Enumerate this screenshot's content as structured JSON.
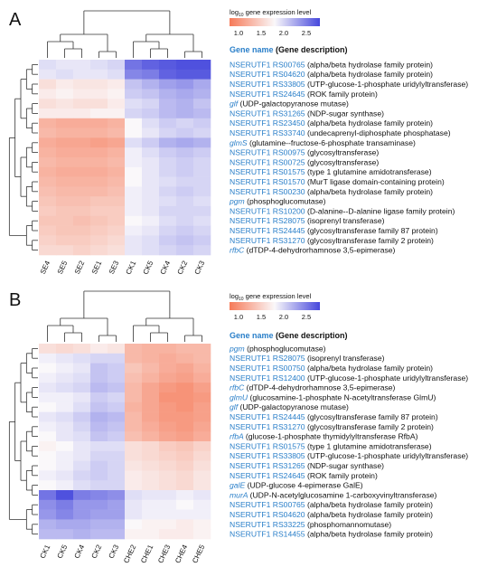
{
  "chart_data": [
    {
      "type": "heatmap",
      "panel_label": "A",
      "legend": {
        "title_prefix": "log",
        "title_sub": "10",
        "title_rest": " gene expression level",
        "ticks": [
          "1.0",
          "1.5",
          "2.0",
          "2.5"
        ],
        "range": [
          0.8,
          2.8
        ]
      },
      "header": "Gene name",
      "header_desc": "(Gene description)",
      "columns": [
        "SE4",
        "SE5",
        "SE2",
        "SE1",
        "SE3",
        "CK1",
        "CK5",
        "CK4",
        "CK2",
        "CK3"
      ],
      "rows": [
        {
          "id": "NSERUTF1 RS00765",
          "desc": "(alpha/beta hydrolase family protein)",
          "italic": false
        },
        {
          "id": "NSERUTF1 RS04620",
          "desc": "(alpha/beta hydrolase family protein)",
          "italic": false
        },
        {
          "id": "NSERUTF1 RS33805",
          "desc": "(UTP-glucose-1-phosphate uridylyltransferase)",
          "italic": false
        },
        {
          "id": "NSERUTF1 RS24645",
          "desc": "(ROK family protein)",
          "italic": false
        },
        {
          "id": "glf",
          "desc": "(UDP-galactopyranose mutase)",
          "italic": true
        },
        {
          "id": "NSERUTF1 RS31265",
          "desc": "(NDP-sugar synthase)",
          "italic": false
        },
        {
          "id": "NSERUTF1 RS23450",
          "desc": "(alpha/beta hydrolase family protein)",
          "italic": false
        },
        {
          "id": "NSERUTF1 RS33740",
          "desc": "(undecaprenyl-diphosphate phosphatase)",
          "italic": false
        },
        {
          "id": "glmS",
          "desc": "(glutamine--fructose-6-phosphate transaminase)",
          "italic": true
        },
        {
          "id": "NSERUTF1 RS00975",
          "desc": "(glycosyltransferase)",
          "italic": false
        },
        {
          "id": "NSERUTF1 RS00725",
          "desc": "(glycosyltransferase)",
          "italic": false
        },
        {
          "id": "NSERUTF1 RS01575",
          "desc": "(type 1 glutamine amidotransferase)",
          "italic": false
        },
        {
          "id": "NSERUTF1 RS01570",
          "desc": "(MurT ligase domain-containing protein)",
          "italic": false
        },
        {
          "id": "NSERUTF1 RS00230",
          "desc": "(alpha/beta hydrolase family protein)",
          "italic": false
        },
        {
          "id": "pgm",
          "desc": "(phosphoglucomutase)",
          "italic": true
        },
        {
          "id": "NSERUTF1 RS10200",
          "desc": "(D-alanine--D-alanine ligase family protein)",
          "italic": false
        },
        {
          "id": "NSERUTF1 RS28075",
          "desc": "(isoprenyl transferase)",
          "italic": false
        },
        {
          "id": "NSERUTF1 RS24445",
          "desc": "(glycosyltransferase family 87 protein)",
          "italic": false
        },
        {
          "id": "NSERUTF1 RS31270",
          "desc": "(glycosyltransferase family 2 protein)",
          "italic": false
        },
        {
          "id": "rfbC",
          "desc": "(dTDP-4-dehydrorhamnose 3,5-epimerase)",
          "italic": true
        }
      ],
      "values": [
        [
          1.95,
          1.9,
          1.9,
          1.95,
          2.0,
          2.55,
          2.65,
          2.7,
          2.75,
          2.75
        ],
        [
          1.9,
          1.95,
          1.9,
          1.9,
          1.95,
          2.45,
          2.5,
          2.65,
          2.7,
          2.7
        ],
        [
          1.6,
          1.7,
          1.65,
          1.65,
          1.7,
          2.1,
          2.2,
          2.3,
          2.35,
          2.25
        ],
        [
          1.7,
          1.75,
          1.7,
          1.7,
          1.75,
          2.05,
          2.1,
          2.2,
          2.25,
          2.2
        ],
        [
          1.6,
          1.65,
          1.6,
          1.6,
          1.7,
          1.95,
          2.0,
          2.15,
          2.2,
          2.1
        ],
        [
          1.7,
          1.7,
          1.7,
          1.75,
          1.75,
          2.0,
          2.05,
          2.15,
          2.2,
          2.15
        ],
        [
          1.25,
          1.2,
          1.2,
          1.2,
          1.25,
          1.8,
          1.95,
          2.05,
          2.0,
          2.05
        ],
        [
          1.3,
          1.25,
          1.25,
          1.25,
          1.3,
          1.8,
          1.9,
          2.0,
          2.05,
          2.0
        ],
        [
          1.2,
          1.15,
          1.15,
          1.1,
          1.15,
          1.95,
          2.05,
          2.2,
          2.25,
          2.2
        ],
        [
          1.25,
          1.2,
          1.2,
          1.2,
          1.25,
          1.85,
          1.95,
          2.05,
          2.1,
          2.05
        ],
        [
          1.3,
          1.25,
          1.25,
          1.25,
          1.3,
          1.85,
          1.9,
          2.0,
          2.05,
          2.0
        ],
        [
          1.25,
          1.2,
          1.2,
          1.2,
          1.25,
          1.8,
          1.9,
          2.0,
          2.05,
          2.0
        ],
        [
          1.3,
          1.25,
          1.25,
          1.25,
          1.3,
          1.8,
          1.9,
          1.95,
          2.0,
          2.0
        ],
        [
          1.35,
          1.3,
          1.3,
          1.3,
          1.35,
          1.85,
          1.9,
          2.0,
          2.05,
          2.0
        ],
        [
          1.4,
          1.35,
          1.35,
          1.4,
          1.4,
          1.85,
          1.9,
          1.95,
          2.0,
          1.95
        ],
        [
          1.45,
          1.4,
          1.4,
          1.45,
          1.45,
          1.85,
          1.9,
          2.0,
          2.0,
          2.0
        ],
        [
          1.4,
          1.4,
          1.35,
          1.4,
          1.45,
          1.8,
          1.85,
          1.95,
          2.0,
          1.95
        ],
        [
          1.45,
          1.4,
          1.4,
          1.45,
          1.5,
          1.85,
          1.9,
          2.0,
          2.05,
          2.0
        ],
        [
          1.5,
          1.45,
          1.45,
          1.5,
          1.55,
          1.9,
          1.95,
          2.05,
          2.1,
          2.05
        ],
        [
          1.55,
          1.55,
          1.5,
          1.55,
          1.6,
          1.9,
          1.95,
          2.0,
          2.05,
          2.0
        ]
      ]
    },
    {
      "type": "heatmap",
      "panel_label": "B",
      "legend": {
        "title_prefix": "log",
        "title_sub": "10",
        "title_rest": " gene expression level",
        "ticks": [
          "1.0",
          "1.5",
          "2.0",
          "2.5"
        ],
        "range": [
          0.8,
          2.8
        ]
      },
      "header": "Gene name",
      "header_desc": "(Gene description)",
      "columns": [
        "CK1",
        "CK5",
        "CK4",
        "CK2",
        "CK3",
        "CHE2",
        "CHE1",
        "CHE3",
        "CHE4",
        "CHE5"
      ],
      "rows": [
        {
          "id": "pgm",
          "desc": "(phosphoglucomutase)",
          "italic": true
        },
        {
          "id": "NSERUTF1 RS28075",
          "desc": "(isoprenyl transferase)",
          "italic": false
        },
        {
          "id": "NSERUTF1 RS00750",
          "desc": "(alpha/beta hydrolase family protein)",
          "italic": false
        },
        {
          "id": "NSERUTF1 RS12400",
          "desc": "(UTP-glucose-1-phosphate uridylyltransferase)",
          "italic": false
        },
        {
          "id": "rfbC",
          "desc": "(dTDP-4-dehydrorhamnose 3,5-epimerase)",
          "italic": true
        },
        {
          "id": "glmU",
          "desc": "(glucosamine-1-phosphate N-acetyltransferase GlmU)",
          "italic": true
        },
        {
          "id": "glf",
          "desc": "(UDP-galactopyranose mutase)",
          "italic": true
        },
        {
          "id": "NSERUTF1 RS24445",
          "desc": "(glycosyltransferase family 87 protein)",
          "italic": false
        },
        {
          "id": "NSERUTF1 RS31270",
          "desc": "(glycosyltransferase family 2 protein)",
          "italic": false
        },
        {
          "id": "rfbA",
          "desc": "(glucose-1-phosphate thymidylyltransferase RfbA)",
          "italic": true
        },
        {
          "id": "NSERUTF1 RS01575",
          "desc": "(type 1 glutamine amidotransferase)",
          "italic": false
        },
        {
          "id": "NSERUTF1 RS33805",
          "desc": "(UTP-glucose-1-phosphate uridylyltransferase)",
          "italic": false
        },
        {
          "id": "NSERUTF1 RS31265",
          "desc": "(NDP-sugar synthase)",
          "italic": false
        },
        {
          "id": "NSERUTF1 RS24645",
          "desc": "(ROK family protein)",
          "italic": false
        },
        {
          "id": "galE",
          "desc": "(UDP-glucose 4-epimerase GalE)",
          "italic": true
        },
        {
          "id": "murA",
          "desc": "(UDP-N-acetylglucosamine 1-carboxyvinyltransferase)",
          "italic": true
        },
        {
          "id": "NSERUTF1 RS00765",
          "desc": "(alpha/beta hydrolase family protein)",
          "italic": false
        },
        {
          "id": "NSERUTF1 RS04620",
          "desc": "(alpha/beta hydrolase family protein)",
          "italic": false
        },
        {
          "id": "NSERUTF1 RS33225",
          "desc": "(phosphomannomutase)",
          "italic": false
        },
        {
          "id": "NSERUTF1 RS14455",
          "desc": "(alpha/beta hydrolase family protein)",
          "italic": false
        }
      ],
      "values": [
        [
          1.6,
          1.55,
          1.6,
          1.7,
          1.65,
          1.3,
          1.25,
          1.25,
          1.3,
          1.3
        ],
        [
          1.85,
          1.9,
          1.95,
          2.0,
          2.0,
          1.3,
          1.25,
          1.2,
          1.25,
          1.3
        ],
        [
          1.8,
          1.85,
          1.9,
          2.1,
          2.05,
          1.4,
          1.3,
          1.2,
          1.15,
          1.25
        ],
        [
          1.85,
          1.9,
          1.95,
          2.1,
          2.05,
          1.35,
          1.25,
          1.15,
          1.1,
          1.2
        ],
        [
          1.9,
          1.95,
          2.0,
          2.15,
          2.1,
          1.3,
          1.15,
          1.05,
          1.0,
          1.1
        ],
        [
          1.85,
          1.85,
          1.9,
          2.05,
          2.0,
          1.3,
          1.15,
          1.0,
          1.0,
          1.05
        ],
        [
          1.8,
          1.85,
          1.95,
          2.1,
          2.05,
          1.25,
          1.15,
          1.05,
          1.0,
          1.1
        ],
        [
          1.9,
          1.95,
          2.05,
          2.2,
          2.15,
          1.3,
          1.15,
          1.05,
          1.05,
          1.1
        ],
        [
          1.85,
          1.9,
          2.0,
          2.15,
          2.1,
          1.3,
          1.2,
          1.1,
          1.05,
          1.15
        ],
        [
          1.8,
          1.9,
          1.95,
          2.1,
          2.05,
          1.35,
          1.25,
          1.15,
          1.1,
          1.2
        ],
        [
          1.75,
          1.8,
          1.9,
          1.95,
          1.95,
          1.6,
          1.55,
          1.45,
          1.4,
          1.5
        ],
        [
          1.8,
          1.85,
          1.9,
          2.0,
          2.0,
          1.6,
          1.55,
          1.5,
          1.45,
          1.55
        ],
        [
          1.8,
          1.85,
          1.95,
          2.05,
          2.0,
          1.65,
          1.6,
          1.55,
          1.5,
          1.6
        ],
        [
          1.85,
          1.9,
          2.0,
          2.05,
          2.0,
          1.7,
          1.65,
          1.6,
          1.55,
          1.65
        ],
        [
          1.8,
          1.85,
          1.95,
          2.0,
          2.0,
          1.7,
          1.65,
          1.6,
          1.55,
          1.65
        ],
        [
          2.55,
          2.75,
          2.5,
          2.45,
          2.4,
          1.95,
          1.9,
          1.9,
          1.85,
          1.9
        ],
        [
          2.4,
          2.5,
          2.35,
          2.35,
          2.3,
          1.9,
          1.85,
          1.85,
          1.8,
          1.85
        ],
        [
          2.35,
          2.45,
          2.35,
          2.3,
          2.3,
          1.9,
          1.85,
          1.85,
          1.85,
          1.85
        ],
        [
          2.2,
          2.25,
          2.25,
          2.2,
          2.2,
          1.8,
          1.75,
          1.75,
          1.7,
          1.75
        ],
        [
          2.15,
          2.15,
          2.2,
          2.15,
          2.15,
          1.75,
          1.75,
          1.7,
          1.7,
          1.75
        ]
      ]
    }
  ]
}
